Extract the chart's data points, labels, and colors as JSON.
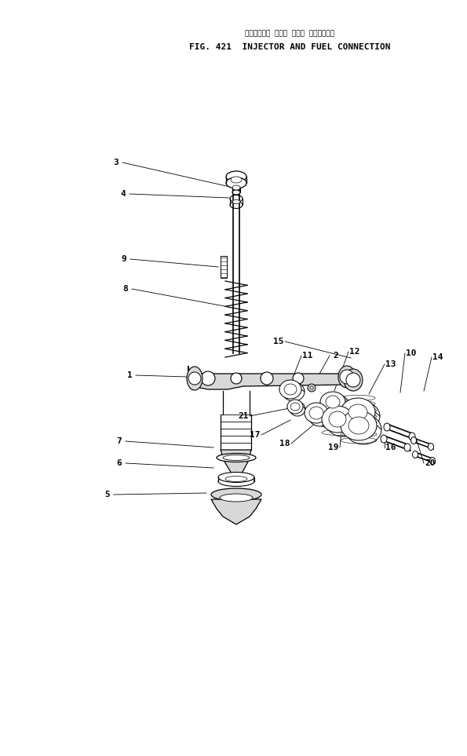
{
  "title_japanese": "インジェクタ および フエル コネクション",
  "title_english": "FIG. 421  INJECTOR AND FUEL CONNECTION",
  "bg_color": "#ffffff",
  "line_color": "#000000",
  "fig_width": 5.95,
  "fig_height": 9.63,
  "label_fontsize": 7.5
}
